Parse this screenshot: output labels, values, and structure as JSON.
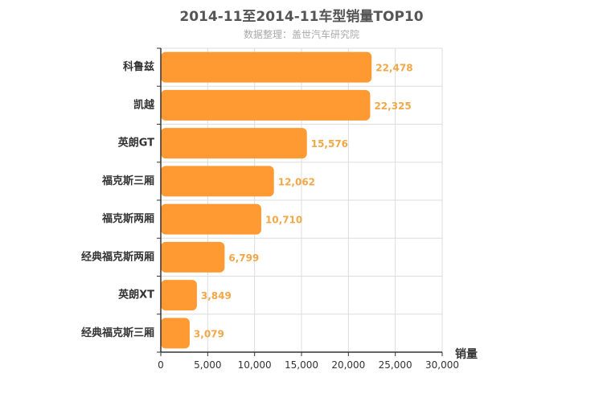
{
  "chart_data": {
    "type": "bar",
    "orientation": "horizontal",
    "title": "2014-11至2014-11车型销量TOP10",
    "subtitle": "数据整理：盖世汽车研究院",
    "xlabel": "销量",
    "ylabel": "",
    "categories": [
      "科鲁兹",
      "凯越",
      "英朗GT",
      "福克斯三厢",
      "福克斯两厢",
      "经典福克斯两厢",
      "英朗XT",
      "经典福克斯三厢"
    ],
    "values": [
      22478,
      22325,
      15576,
      12062,
      10710,
      6799,
      3849,
      3079
    ],
    "value_labels": [
      "22,478",
      "22,325",
      "15,576",
      "12,062",
      "10,710",
      "6,799",
      "3,849",
      "3,079"
    ],
    "xlim": [
      0,
      30000
    ],
    "xticks": [
      0,
      5000,
      10000,
      15000,
      20000,
      25000,
      30000
    ],
    "xtick_labels": [
      "0",
      "5,000",
      "10,000",
      "15,000",
      "20,000",
      "25,000",
      "30,000"
    ],
    "grid": true,
    "bar_color": "#ff9a33",
    "label_color": "#f0a848"
  }
}
